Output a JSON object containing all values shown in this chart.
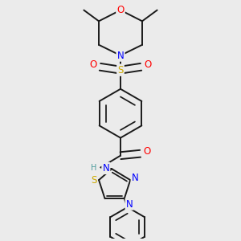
{
  "bg_color": "#ebebeb",
  "bond_color": "#1a1a1a",
  "N_color": "#0000ff",
  "O_color": "#ff0000",
  "S_color": "#ccaa00",
  "H_color": "#4a9a9a",
  "lw": 1.4,
  "figsize": [
    3.0,
    3.0
  ],
  "dpi": 100,
  "xlim": [
    -1.5,
    1.5
  ],
  "ylim": [
    -3.8,
    2.2
  ]
}
